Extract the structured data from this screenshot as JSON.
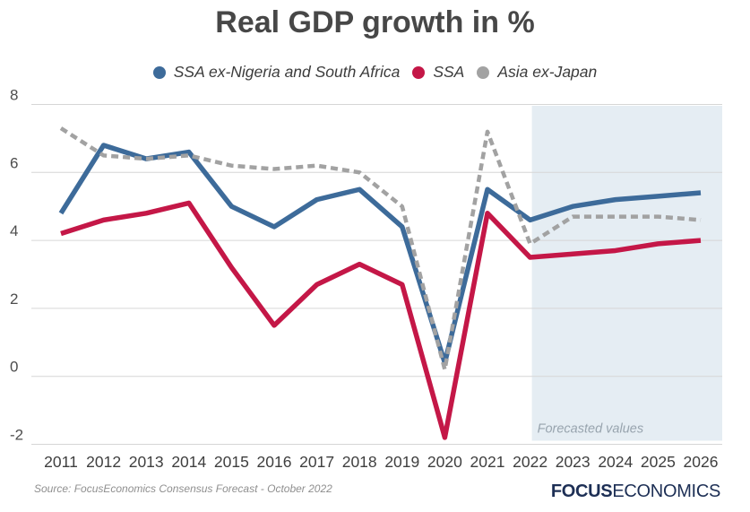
{
  "title": "Real GDP growth in %",
  "legend": {
    "items": [
      {
        "label": "SSA ex-Nigeria and South Africa",
        "color": "#3d6b9a"
      },
      {
        "label": "SSA",
        "color": "#c41747"
      },
      {
        "label": "Asia ex-Japan",
        "color": "#a2a2a2"
      }
    ]
  },
  "chart_data": {
    "type": "line",
    "title": "Real GDP growth in %",
    "x": [
      2011,
      2012,
      2013,
      2014,
      2015,
      2016,
      2017,
      2018,
      2019,
      2020,
      2021,
      2022,
      2023,
      2024,
      2025,
      2026
    ],
    "series": [
      {
        "name": "SSA ex-Nigeria and South Africa",
        "color": "#3d6b9a",
        "style": "solid",
        "values": [
          4.8,
          6.8,
          6.4,
          6.6,
          5.0,
          4.4,
          5.2,
          5.5,
          4.4,
          0.4,
          5.5,
          4.6,
          5.0,
          5.2,
          5.3,
          5.4
        ]
      },
      {
        "name": "SSA",
        "color": "#c41747",
        "style": "solid",
        "values": [
          4.2,
          4.6,
          4.8,
          5.1,
          3.2,
          1.5,
          2.7,
          3.3,
          2.7,
          -1.8,
          4.8,
          3.5,
          3.6,
          3.7,
          3.9,
          4.0
        ]
      },
      {
        "name": "Asia ex-Japan",
        "color": "#a2a2a2",
        "style": "dashed",
        "values": [
          7.3,
          6.5,
          6.4,
          6.5,
          6.2,
          6.1,
          6.2,
          6.0,
          5.0,
          0.2,
          7.2,
          3.9,
          4.7,
          4.7,
          4.7,
          4.6
        ]
      }
    ],
    "xlabel": "",
    "ylabel": "",
    "ylim": [
      -2,
      8
    ],
    "yticks": [
      8,
      6,
      4,
      2,
      0,
      -2
    ],
    "grid": true,
    "legend_position": "top",
    "forecast": {
      "start_year": 2022,
      "label": "Forecasted values",
      "fill": "#e5edf3",
      "label_color": "#98a4ae"
    }
  },
  "axis_colors": {
    "grid": "#d6d6d6",
    "tick_label": "#4d4d4d",
    "x_label": "#3f3f3f"
  },
  "footer": {
    "source": "Source:  FocusEconomics Consensus Forecast - October 2022",
    "logo": {
      "bold": "FOCUS",
      "regular": "ECONOMICS"
    }
  }
}
